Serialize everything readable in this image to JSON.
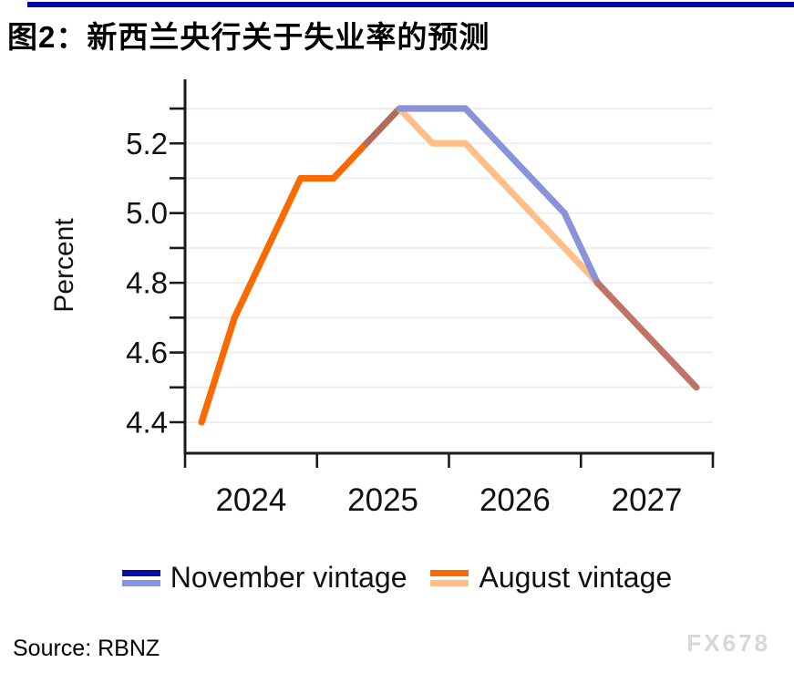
{
  "header": {
    "title": "图2：新西兰央行关于失业率的预测",
    "rule_color": "#0104A8"
  },
  "footer": {
    "source": "Source: RBNZ",
    "watermark": "FX678",
    "watermark_color": "#D7D7DA"
  },
  "chart_data": {
    "type": "line",
    "title": "图2：新西兰央行关于失业率的预测",
    "xlabel": "",
    "ylabel": "Percent",
    "x_quarters": [
      "2024Q1",
      "2024Q2",
      "2024Q3",
      "2024Q4",
      "2025Q1",
      "2025Q2",
      "2025Q3",
      "2025Q4",
      "2026Q1",
      "2026Q2",
      "2026Q3",
      "2026Q4",
      "2027Q1",
      "2027Q2",
      "2027Q3",
      "2027Q4"
    ],
    "x_tick_years": [
      "2024",
      "2025",
      "2026",
      "2027"
    ],
    "y_tick_labels": [
      "4.4",
      "4.6",
      "4.8",
      "5.0",
      "5.2"
    ],
    "ylim": [
      4.4,
      5.3
    ],
    "grid_step": 0.1,
    "grid": "horizontal gridlines every 0.1, light grey",
    "legend_position": "bottom center",
    "series": [
      {
        "name": "November vintage",
        "values": [
          4.4,
          4.7,
          4.9,
          5.1,
          5.1,
          5.2,
          5.3,
          5.3,
          5.3,
          5.2,
          5.1,
          5.0,
          4.8,
          4.7,
          4.6,
          4.5
        ],
        "color_actual": "#0A0FA4",
        "color_forecast": "#8A93D9"
      },
      {
        "name": "August vintage",
        "values": [
          4.4,
          4.7,
          4.9,
          5.1,
          5.1,
          5.2,
          5.3,
          5.2,
          5.2,
          5.1,
          5.0,
          4.9,
          4.8,
          4.7,
          4.6,
          4.5
        ],
        "color_actual": "#F96A00",
        "color_forecast": "#FFBE8A"
      }
    ],
    "overlap_note": "where the two vintages coincide the line renders as a blended terracotta colour",
    "render_segments": [
      {
        "series": "august",
        "from": 0,
        "to": 5,
        "color": "#F96A00",
        "note": "shared actual history"
      },
      {
        "series": "november",
        "from": 5,
        "to": 6,
        "color": "#B26B58",
        "note": "overlap rise 5.2 to 5.3"
      },
      {
        "series": "august",
        "from": 6,
        "to": 12,
        "color": "#FFBE8A",
        "note": "August forecast"
      },
      {
        "series": "november",
        "from": 6,
        "to": 12,
        "color": "#8A93D9",
        "note": "November forecast"
      },
      {
        "series": "november",
        "from": 12,
        "to": 15,
        "color": "#C07467",
        "note": "overlapping forecasts tail"
      }
    ]
  }
}
